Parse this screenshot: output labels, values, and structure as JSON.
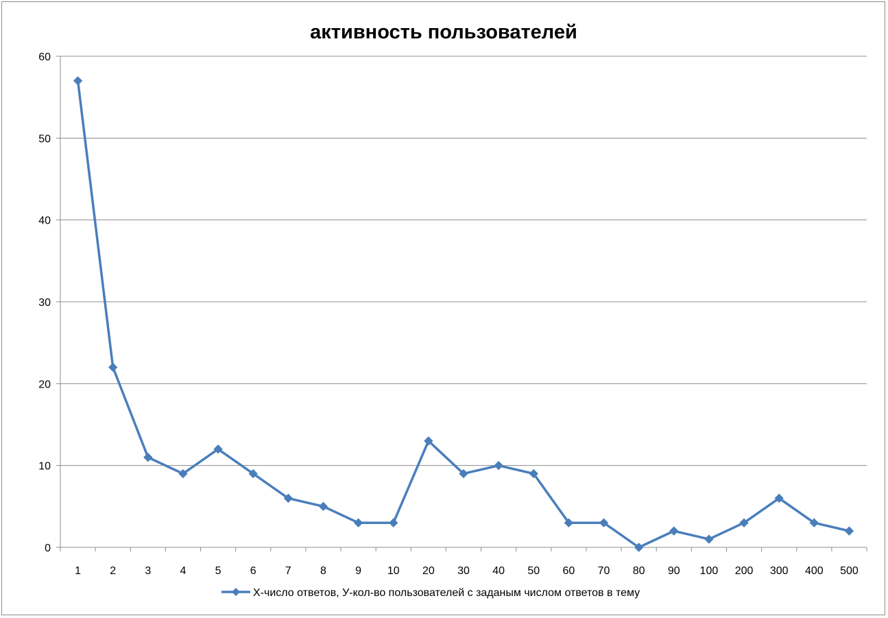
{
  "chart_data": {
    "type": "line",
    "title": "активность пользователей",
    "xlabel": "",
    "ylabel": "",
    "categories": [
      "1",
      "2",
      "3",
      "4",
      "5",
      "6",
      "7",
      "8",
      "9",
      "10",
      "20",
      "30",
      "40",
      "50",
      "60",
      "70",
      "80",
      "90",
      "100",
      "200",
      "300",
      "400",
      "500"
    ],
    "series": [
      {
        "name": "Х-число ответов, У-кол-во пользователей с заданым числом ответов в тему",
        "values": [
          57,
          22,
          11,
          9,
          12,
          9,
          6,
          5,
          3,
          3,
          13,
          9,
          10,
          9,
          3,
          3,
          0,
          2,
          1,
          3,
          6,
          3,
          2
        ],
        "color": "#4a7ebb",
        "marker": "diamond"
      }
    ],
    "ylim": [
      0,
      60
    ],
    "yticks": [
      0,
      10,
      20,
      30,
      40,
      50,
      60
    ],
    "grid": "horizontal",
    "legend": "bottom"
  }
}
